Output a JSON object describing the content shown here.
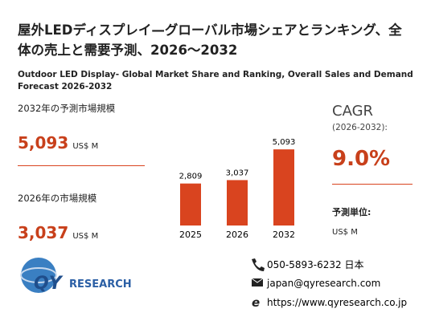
{
  "title": "屋外LEDディスプレイ—グローバル市場シェアとランキング、全体の売上と需要予測、2026〜2032",
  "subtitle": "Outdoor LED Display- Global Market Share and Ranking, Overall Sales and Demand Forecast 2026-2032",
  "summary": {
    "forecast_label": "2032年の予測市場規模",
    "forecast_value": "5,093",
    "forecast_unit": "US$ M",
    "current_label": "2026年の市場規模",
    "current_value": "3,037",
    "current_unit": "US$ M"
  },
  "chart_data": {
    "type": "bar",
    "categories": [
      "2025",
      "2026",
      "2032"
    ],
    "values": [
      2809,
      3037,
      5093
    ],
    "value_labels": [
      "2,809",
      "3,037",
      "5,093"
    ],
    "color": "#d9441f"
  },
  "cagr": {
    "label": "CAGR",
    "period": "(2026-2032):",
    "value": "9.0%",
    "unit_label": "予測単位:",
    "unit": "US$ M"
  },
  "logo": {
    "qy": "QY",
    "research": "RESEARCH"
  },
  "contact": {
    "phone": "050-5893-6232 日本",
    "email": "japan@qyresearch.com",
    "web": "https://www.qyresearch.co.jp"
  }
}
